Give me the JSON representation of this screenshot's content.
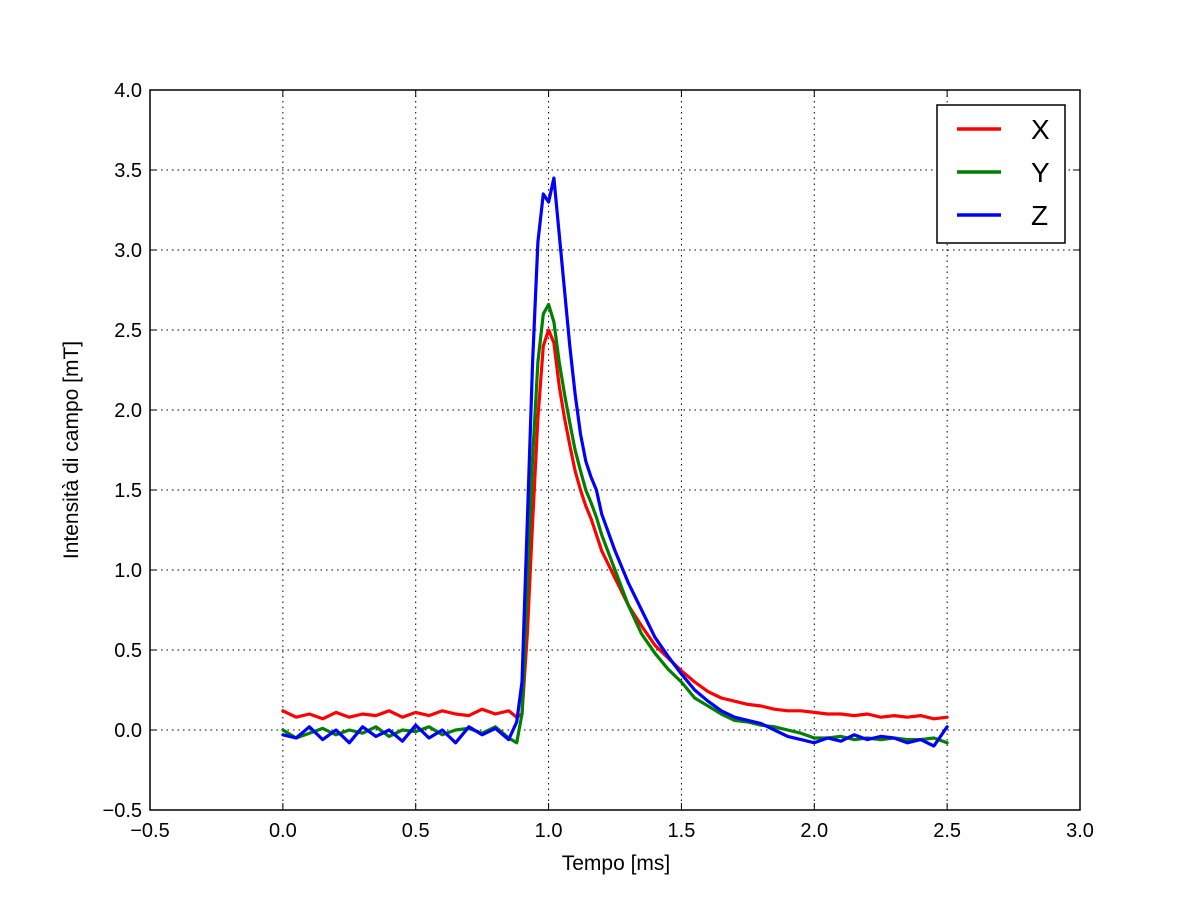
{
  "chart_data": {
    "type": "line",
    "title": "",
    "xlabel": "Tempo [ms]",
    "ylabel": "Intensità di campo [mT]",
    "xlim": [
      -0.5,
      3.0
    ],
    "ylim": [
      -0.5,
      4.0
    ],
    "xticks": [
      -0.5,
      0.0,
      0.5,
      1.0,
      1.5,
      2.0,
      2.5,
      3.0
    ],
    "yticks": [
      -0.5,
      0.0,
      0.5,
      1.0,
      1.5,
      2.0,
      2.5,
      3.0,
      3.5,
      4.0
    ],
    "xtick_labels": [
      "−0.5",
      "0.0",
      "0.5",
      "1.0",
      "1.5",
      "2.0",
      "2.5",
      "3.0"
    ],
    "ytick_labels": [
      "−0.5",
      "0.0",
      "0.5",
      "1.0",
      "1.5",
      "2.0",
      "2.5",
      "3.0",
      "3.5",
      "4.0"
    ],
    "grid": true,
    "legend_position": "top-right",
    "x": [
      0.0,
      0.05,
      0.1,
      0.15,
      0.2,
      0.25,
      0.3,
      0.35,
      0.4,
      0.45,
      0.5,
      0.55,
      0.6,
      0.65,
      0.7,
      0.75,
      0.8,
      0.85,
      0.88,
      0.9,
      0.92,
      0.94,
      0.96,
      0.98,
      1.0,
      1.02,
      1.04,
      1.06,
      1.08,
      1.1,
      1.12,
      1.14,
      1.16,
      1.18,
      1.2,
      1.25,
      1.3,
      1.35,
      1.4,
      1.45,
      1.5,
      1.55,
      1.6,
      1.65,
      1.7,
      1.75,
      1.8,
      1.85,
      1.9,
      1.95,
      2.0,
      2.05,
      2.1,
      2.15,
      2.2,
      2.25,
      2.3,
      2.35,
      2.4,
      2.45,
      2.5
    ],
    "series": [
      {
        "name": "X",
        "color": "#ff0000",
        "values": [
          0.12,
          0.08,
          0.1,
          0.07,
          0.11,
          0.08,
          0.1,
          0.09,
          0.12,
          0.08,
          0.11,
          0.09,
          0.12,
          0.1,
          0.09,
          0.13,
          0.1,
          0.12,
          0.08,
          0.1,
          0.6,
          1.3,
          1.95,
          2.4,
          2.5,
          2.42,
          2.15,
          1.95,
          1.78,
          1.62,
          1.5,
          1.4,
          1.32,
          1.22,
          1.12,
          0.95,
          0.78,
          0.65,
          0.53,
          0.45,
          0.37,
          0.3,
          0.24,
          0.2,
          0.18,
          0.16,
          0.15,
          0.13,
          0.12,
          0.12,
          0.11,
          0.1,
          0.1,
          0.09,
          0.1,
          0.08,
          0.09,
          0.08,
          0.09,
          0.07,
          0.08
        ]
      },
      {
        "name": "Y",
        "color": "#008000",
        "values": [
          0.0,
          -0.05,
          -0.02,
          0.01,
          -0.03,
          0.0,
          -0.02,
          0.02,
          -0.04,
          0.0,
          -0.01,
          0.02,
          -0.03,
          0.0,
          0.01,
          -0.02,
          0.02,
          -0.05,
          -0.08,
          0.1,
          0.9,
          1.7,
          2.3,
          2.6,
          2.66,
          2.55,
          2.3,
          2.1,
          1.92,
          1.75,
          1.62,
          1.5,
          1.42,
          1.33,
          1.22,
          1.0,
          0.78,
          0.6,
          0.48,
          0.38,
          0.3,
          0.2,
          0.15,
          0.1,
          0.06,
          0.05,
          0.03,
          0.02,
          0.0,
          -0.02,
          -0.05,
          -0.05,
          -0.04,
          -0.06,
          -0.05,
          -0.06,
          -0.05,
          -0.06,
          -0.06,
          -0.05,
          -0.08
        ]
      },
      {
        "name": "Z",
        "color": "#0000ff",
        "values": [
          -0.03,
          -0.05,
          0.02,
          -0.06,
          0.0,
          -0.08,
          0.02,
          -0.04,
          0.0,
          -0.07,
          0.03,
          -0.05,
          0.0,
          -0.08,
          0.02,
          -0.03,
          0.01,
          -0.06,
          0.05,
          0.3,
          1.3,
          2.3,
          3.05,
          3.35,
          3.3,
          3.45,
          3.1,
          2.75,
          2.4,
          2.1,
          1.85,
          1.68,
          1.58,
          1.5,
          1.35,
          1.12,
          0.92,
          0.75,
          0.58,
          0.46,
          0.35,
          0.25,
          0.18,
          0.12,
          0.08,
          0.06,
          0.04,
          0.0,
          -0.04,
          -0.06,
          -0.08,
          -0.05,
          -0.07,
          -0.03,
          -0.06,
          -0.04,
          -0.05,
          -0.08,
          -0.06,
          -0.1,
          0.02
        ]
      }
    ]
  }
}
